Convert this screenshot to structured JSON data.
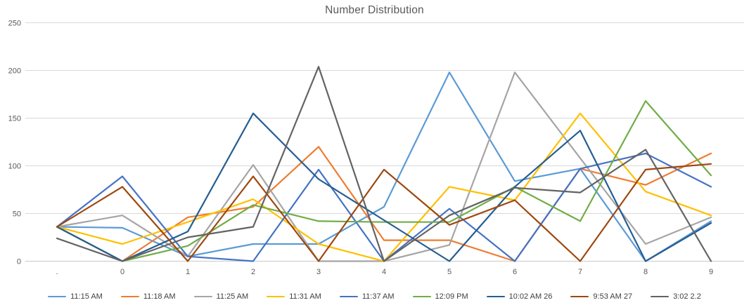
{
  "chart_data": {
    "type": "line",
    "title": "Number Distribution",
    "categories": [
      ".",
      "0",
      "1",
      "2",
      "3",
      "4",
      "5",
      "6",
      "7",
      "8",
      "9"
    ],
    "y_axis": {
      "min": 0,
      "max": 250,
      "step": 50
    },
    "y_tick_labels": [
      "0",
      "50",
      "100",
      "150",
      "200",
      "250"
    ],
    "grid": "horizontal",
    "legend_position": "bottom",
    "series": [
      {
        "name": "11:15 AM",
        "color": "#5B9BD5",
        "values": [
          36,
          35,
          5,
          18,
          18,
          57,
          198,
          84,
          97,
          0,
          42
        ]
      },
      {
        "name": "11:18 AM",
        "color": "#ED7D31",
        "values": [
          36,
          0,
          46,
          57,
          120,
          22,
          22,
          0,
          97,
          80,
          113
        ]
      },
      {
        "name": "11:25 AM",
        "color": "#A5A5A5",
        "values": [
          36,
          48,
          5,
          101,
          0,
          0,
          17,
          198,
          108,
          18,
          46
        ]
      },
      {
        "name": "11:31 AM",
        "color": "#FFC000",
        "values": [
          36,
          18,
          41,
          65,
          18,
          0,
          78,
          64,
          155,
          73,
          48
        ]
      },
      {
        "name": "11:37 AM",
        "color": "#4472C4",
        "values": [
          36,
          89,
          5,
          0,
          96,
          0,
          55,
          0,
          97,
          113,
          78
        ]
      },
      {
        "name": "12:09 PM",
        "color": "#70AD47",
        "values": [
          36,
          0,
          16,
          59,
          42,
          41,
          41,
          78,
          42,
          168,
          90
        ]
      },
      {
        "name": "10:02 AM 26",
        "color": "#255E91",
        "values": [
          36,
          0,
          31,
          155,
          86,
          43,
          0,
          78,
          137,
          0,
          40
        ]
      },
      {
        "name": "9:53 AM 27",
        "color": "#9E480E",
        "values": [
          36,
          78,
          0,
          89,
          0,
          96,
          38,
          64,
          0,
          96,
          102
        ]
      },
      {
        "name": "3:02 2.2",
        "color": "#636363",
        "values": [
          24,
          0,
          25,
          36,
          204,
          0,
          48,
          77,
          72,
          117,
          0
        ]
      }
    ]
  }
}
